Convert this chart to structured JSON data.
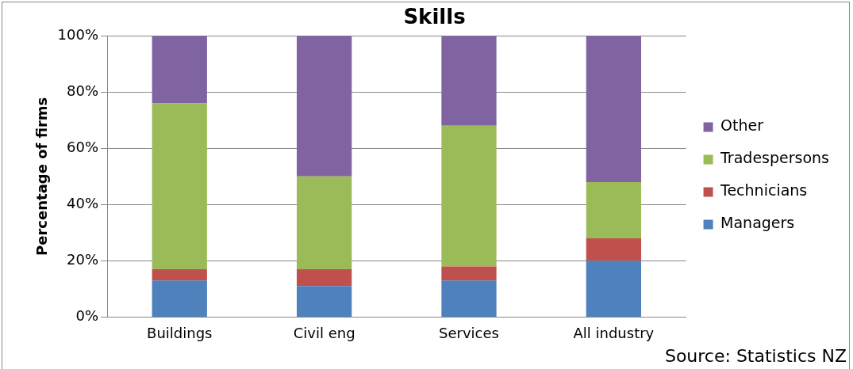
{
  "chart_data": {
    "type": "bar",
    "title": "Skills",
    "ylabel": "Percentage of firms",
    "stacked": true,
    "categories": [
      "Buildings",
      "Civil eng",
      "Services",
      "All industry"
    ],
    "series": [
      {
        "name": "Managers",
        "color": "#4f81bd",
        "values": [
          13,
          11,
          13,
          20
        ]
      },
      {
        "name": "Technicians",
        "color": "#c0504d",
        "values": [
          4,
          6,
          5,
          8
        ]
      },
      {
        "name": "Tradespersons",
        "color": "#9bbb59",
        "values": [
          59,
          33,
          50,
          20
        ]
      },
      {
        "name": "Other",
        "color": "#8064a2",
        "values": [
          24,
          50,
          32,
          52
        ]
      }
    ],
    "ylim": [
      0,
      100
    ],
    "yticks": [
      {
        "value": 0,
        "label": "0%"
      },
      {
        "value": 20,
        "label": "20%"
      },
      {
        "value": 40,
        "label": "40%"
      },
      {
        "value": 60,
        "label": "60%"
      },
      {
        "value": 80,
        "label": "80%"
      },
      {
        "value": 100,
        "label": "100%"
      }
    ],
    "grid": "y",
    "legend": "right",
    "annotations": [
      "Source: Statistics NZ"
    ]
  }
}
